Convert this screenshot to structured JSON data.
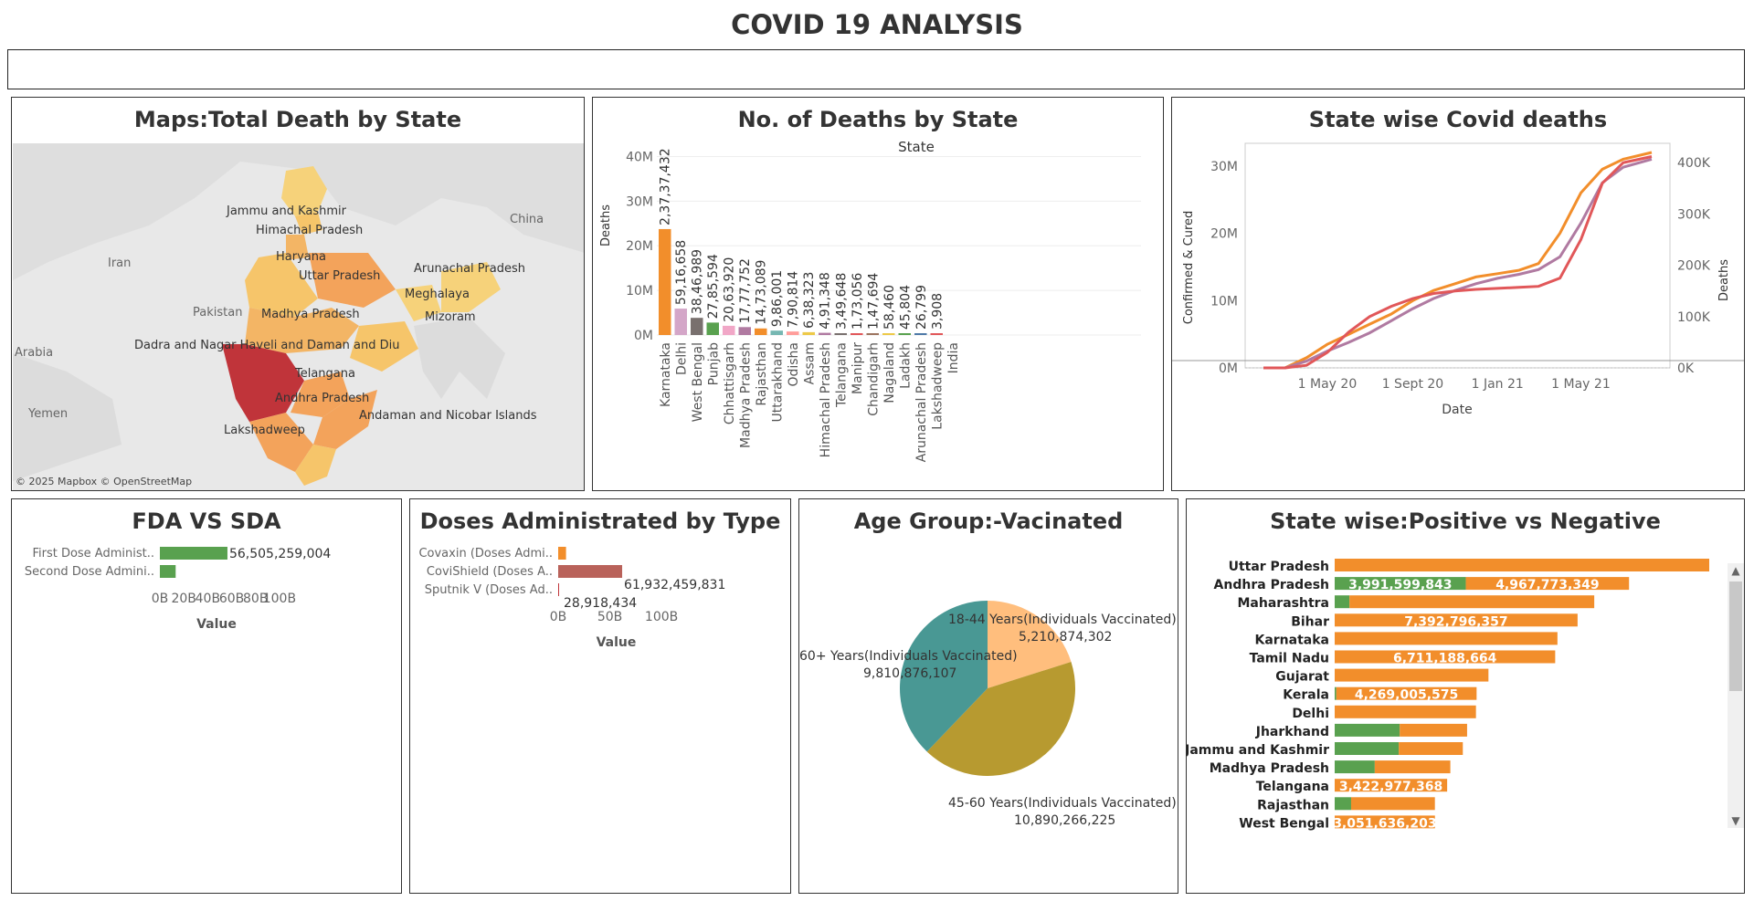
{
  "page": {
    "title": "COVID 19 ANALYSIS"
  },
  "map": {
    "title": "Maps:Total Death by State",
    "attribution": "© 2025 Mapbox © OpenStreetMap",
    "countries": [
      "Iran",
      "China",
      "Pakistan",
      "Arabia",
      "Yemen"
    ],
    "states": [
      "Jammu and Kashmir",
      "Himachal Pradesh",
      "Haryana",
      "Uttar Pradesh",
      "Arunachal Pradesh",
      "Meghalaya",
      "Mizoram",
      "Madhya Pradesh",
      "Dadra and Nagar Haveli and Daman and Diu",
      "Telangana",
      "Andhra Pradesh",
      "Lakshadweep",
      "Andaman and Nicobar Islands"
    ],
    "colors": {
      "high": "#c0343a",
      "mid": "#f3a35b",
      "low": "#f6d27a",
      "water": "#ececec",
      "land": "#dcdcdc"
    }
  },
  "bar_states": {
    "title": "No. of Deaths by State",
    "column_header": "State"
  },
  "line": {
    "title": "State wise Covid deaths"
  },
  "fda": {
    "title": "FDA VS SDA"
  },
  "doses": {
    "title": "Doses Administrated by Type"
  },
  "age": {
    "title": "Age Group:-Vacinated"
  },
  "posneg": {
    "title": "State wise:Positive vs Negative"
  },
  "chart_data": [
    {
      "type": "bar",
      "title": "No. of Deaths by State",
      "xlabel": "State",
      "ylabel": "Deaths",
      "ylim": [
        0,
        45000000
      ],
      "yticks": [
        "0M",
        "10M",
        "20M",
        "30M",
        "40M"
      ],
      "categories": [
        "Karnataka",
        "Delhi",
        "West Bengal",
        "Punjab",
        "Chhattisgarh",
        "Madhya Pradesh",
        "Rajasthan",
        "Uttarakhand",
        "Odisha",
        "Assam",
        "Himachal Pradesh",
        "Telangana",
        "Manipur",
        "Chandigarh",
        "Nagaland",
        "Ladakh",
        "Arunachal Pradesh",
        "Lakshadweep",
        "India"
      ],
      "values": [
        23737432,
        5916658,
        3846989,
        2785594,
        2063920,
        1777752,
        1473089,
        986001,
        790814,
        638323,
        491348,
        349648,
        173056,
        147694,
        58460,
        45804,
        26799,
        3908,
        0
      ],
      "labels": [
        "2,37,37,432",
        "59,16,658",
        "38,46,989",
        "27,85,594",
        "20,63,920",
        "17,77,752",
        "14,73,089",
        "9,86,001",
        "7,90,814",
        "6,38,323",
        "4,91,348",
        "3,49,648",
        "1,73,056",
        "1,47,694",
        "58,460",
        "45,804",
        "26,799",
        "3,908",
        ""
      ],
      "colors": [
        "#f28e2b",
        "#d4a6c8",
        "#79706e",
        "#59a14f",
        "#f1a7c7",
        "#b07aa1",
        "#f28e2b",
        "#76b7b2",
        "#ff9d9a",
        "#edc948",
        "#b07aa1",
        "#79706e",
        "#e15759",
        "#9c755f",
        "#edc948",
        "#59a14f",
        "#4e79a7",
        "#e15759",
        "#bab0ac"
      ]
    },
    {
      "type": "line",
      "title": "State wise Covid deaths",
      "xlabel": "Date",
      "ylabel_left": "Confirmed & Cured",
      "ylabel_right": "Deaths",
      "x_ticks": [
        "1 May 20",
        "1 Sept 20",
        "1 Jan 21",
        "1 May 21"
      ],
      "y_left_ticks": [
        "0M",
        "10M",
        "20M",
        "30M"
      ],
      "y_right_ticks": [
        "0K",
        "100K",
        "200K",
        "300K",
        "400K"
      ],
      "ylim_left": [
        0,
        32000000
      ],
      "ylim_right": [
        0,
        420000
      ],
      "x": [
        "2020-01-30",
        "2020-03-01",
        "2020-04-01",
        "2020-05-01",
        "2020-06-01",
        "2020-07-01",
        "2020-08-01",
        "2020-09-01",
        "2020-10-01",
        "2020-11-01",
        "2020-12-01",
        "2021-01-01",
        "2021-02-01",
        "2021-03-01",
        "2021-04-01",
        "2021-05-01",
        "2021-06-01",
        "2021-07-01",
        "2021-08-11"
      ],
      "series": [
        {
          "name": "Confirmed",
          "axis": "left",
          "color": "#f28e2b",
          "values": [
            0,
            3000,
            1500000,
            3500000,
            5000000,
            6500000,
            8000000,
            10000000,
            11500000,
            12500000,
            13500000,
            14000000,
            14500000,
            15500000,
            20000000,
            26000000,
            29500000,
            31000000,
            32000000
          ]
        },
        {
          "name": "Cured",
          "axis": "left",
          "color": "#b07aa1",
          "values": [
            0,
            0,
            1000000,
            2500000,
            3800000,
            5200000,
            7000000,
            8800000,
            10300000,
            11500000,
            12500000,
            13300000,
            13900000,
            14600000,
            16500000,
            21500000,
            27500000,
            29800000,
            31000000
          ]
        },
        {
          "name": "Deaths",
          "axis": "right",
          "color": "#e15759",
          "values": [
            0,
            0,
            5000,
            30000,
            70000,
            100000,
            120000,
            135000,
            145000,
            150000,
            153000,
            155000,
            157000,
            159000,
            175000,
            250000,
            360000,
            400000,
            412000
          ]
        }
      ]
    },
    {
      "type": "bar",
      "title": "FDA VS SDA",
      "orientation": "horizontal",
      "xlabel": "Value",
      "xlim": [
        0,
        110000000000
      ],
      "xticks": [
        "0B",
        "20B",
        "40B",
        "60B",
        "80B",
        "100B"
      ],
      "categories": [
        "First Dose Administ..",
        "Second Dose Admini.."
      ],
      "values": [
        56505259004,
        13200000000
      ],
      "labels": [
        "56,505,259,004",
        ""
      ],
      "color": "#59a14f"
    },
    {
      "type": "bar",
      "title": "Doses Administrated by Type",
      "orientation": "horizontal",
      "xlabel": "Value",
      "xlim": [
        0,
        130000000000
      ],
      "xticks": [
        "0B",
        "50B",
        "100B"
      ],
      "categories": [
        "Covaxin (Doses Admi..",
        "CoviShield (Doses A..",
        "Sputnik V (Doses Ad.."
      ],
      "values": [
        7600000000,
        61932459831,
        28918434
      ],
      "labels": [
        "",
        "61,932,459,831",
        "28,918,434"
      ],
      "colors": [
        "#f28e2b",
        "#b9625a",
        "#c0343a"
      ]
    },
    {
      "type": "pie",
      "title": "Age Group:-Vacinated",
      "categories": [
        "18-44 Years(Individuals Vaccinated)",
        "45-60 Years(Individuals Vaccinated)",
        "60+ Years(Individuals Vaccinated)"
      ],
      "values": [
        5210874302,
        10890266225,
        9810876107
      ],
      "labels": [
        "5,210,874,302",
        "10,890,266,225",
        "9,810,876,107"
      ],
      "colors": [
        "#ffbe7d",
        "#b79a30",
        "#499894"
      ]
    },
    {
      "type": "bar",
      "title": "State wise:Positive vs Negative",
      "orientation": "horizontal",
      "stacked": true,
      "categories": [
        "Uttar Pradesh",
        "Andhra Pradesh",
        "Maharashtra",
        "Bihar",
        "Karnataka",
        "Tamil Nadu",
        "Gujarat",
        "Kerala",
        "Delhi",
        "Jharkhand",
        "Jammu and Kashmir",
        "Madhya Pradesh",
        "Telangana",
        "Rajasthan",
        "West Bengal"
      ],
      "series": [
        {
          "name": "Positive",
          "color": "#59a14f",
          "values": [
            0,
            3991599843,
            450000000,
            0,
            0,
            0,
            0,
            50000000,
            0,
            1980000000,
            1950000000,
            1220000000,
            0,
            500000000,
            0
          ],
          "labels": [
            "",
            "3,991,599,843",
            "",
            "",
            "",
            "",
            "",
            "",
            "",
            "",
            "",
            "",
            "",
            "",
            ""
          ]
        },
        {
          "name": "Negative",
          "color": "#f28e2b",
          "values": [
            11400000000,
            4967773349,
            7450000000,
            7392796357,
            6780000000,
            6711188664,
            4680000000,
            4269005575,
            4300000000,
            2050000000,
            1950000000,
            2300000000,
            3422977368,
            2550000000,
            3051636203
          ],
          "labels": [
            "",
            "4,967,773,349",
            "",
            "7,392,796,357",
            "",
            "6,711,188,664",
            "",
            "4,269,005,575",
            "",
            "",
            "",
            "",
            "3,422,977,368",
            "",
            "3,051,636,203"
          ]
        }
      ]
    }
  ]
}
